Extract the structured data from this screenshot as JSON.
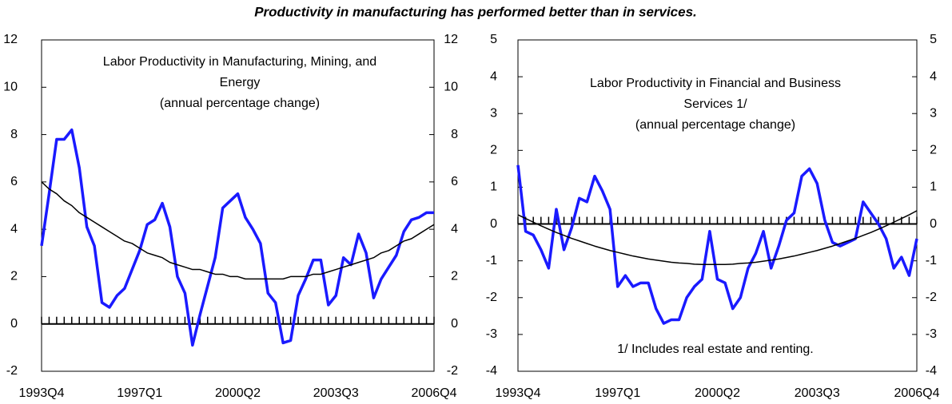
{
  "title": "Productivity in manufacturing has performed better than in services.",
  "chart_data": [
    {
      "type": "line",
      "title_lines": [
        "Labor Productivity in Manufacturing, Mining,  and",
        "Energy",
        "(annual percentage change)"
      ],
      "categories": [
        "1993Q4",
        null,
        null,
        null,
        null,
        null,
        null,
        null,
        null,
        null,
        null,
        null,
        null,
        "1997Q1",
        null,
        null,
        null,
        null,
        null,
        null,
        null,
        null,
        null,
        null,
        null,
        null,
        "2000Q2",
        null,
        null,
        null,
        null,
        null,
        null,
        null,
        null,
        null,
        null,
        null,
        null,
        "2003Q3",
        null,
        null,
        null,
        null,
        null,
        null,
        null,
        null,
        null,
        null,
        null,
        null,
        "2006Q4"
      ],
      "series": [
        {
          "color": "#1a1aff",
          "values": [
            3.3,
            5.5,
            7.8,
            7.8,
            8.2,
            6.6,
            4.1,
            3.3,
            0.9,
            0.7,
            1.2,
            1.5,
            2.3,
            3.1,
            4.2,
            4.4,
            5.1,
            4.1,
            2.0,
            1.3,
            -0.9,
            0.4,
            1.6,
            2.8,
            4.9,
            5.2,
            5.5,
            4.5,
            4.0,
            3.4,
            1.3,
            0.9,
            -0.8,
            -0.7,
            1.2,
            1.9,
            2.7,
            2.7,
            0.8,
            1.2,
            2.8,
            2.5,
            3.8,
            3.0,
            1.1,
            1.9,
            2.4,
            2.9,
            3.9,
            4.4,
            4.5,
            4.7,
            4.7
          ]
        },
        {
          "color": "#000000",
          "values": [
            6.0,
            5.7,
            5.5,
            5.2,
            5.0,
            4.7,
            4.5,
            4.3,
            4.1,
            3.9,
            3.7,
            3.5,
            3.4,
            3.2,
            3.0,
            2.9,
            2.8,
            2.6,
            2.5,
            2.4,
            2.3,
            2.3,
            2.2,
            2.1,
            2.1,
            2.0,
            2.0,
            1.9,
            1.9,
            1.9,
            1.9,
            1.9,
            1.9,
            2.0,
            2.0,
            2.0,
            2.1,
            2.1,
            2.2,
            2.3,
            2.4,
            2.5,
            2.6,
            2.7,
            2.8,
            3.0,
            3.1,
            3.3,
            3.5,
            3.6,
            3.8,
            4.0,
            4.2
          ]
        }
      ],
      "ylim": [
        -2,
        12
      ],
      "yticks": [
        -2,
        0,
        2,
        4,
        6,
        8,
        10,
        12
      ]
    },
    {
      "type": "line",
      "title_lines": [
        "Labor Productivity in Financial and Business",
        "Services 1/",
        "(annual percentage change)"
      ],
      "annotation": "1/ Includes real estate and renting.",
      "categories": [
        "1993Q4",
        null,
        null,
        null,
        null,
        null,
        null,
        null,
        null,
        null,
        null,
        null,
        null,
        "1997Q1",
        null,
        null,
        null,
        null,
        null,
        null,
        null,
        null,
        null,
        null,
        null,
        null,
        "2000Q2",
        null,
        null,
        null,
        null,
        null,
        null,
        null,
        null,
        null,
        null,
        null,
        null,
        "2003Q3",
        null,
        null,
        null,
        null,
        null,
        null,
        null,
        null,
        null,
        null,
        null,
        null,
        "2006Q4"
      ],
      "series": [
        {
          "color": "#1a1aff",
          "values": [
            1.6,
            -0.2,
            -0.3,
            -0.7,
            -1.2,
            0.4,
            -0.7,
            -0.1,
            0.7,
            0.6,
            1.3,
            0.9,
            0.4,
            -1.7,
            -1.4,
            -1.7,
            -1.6,
            -1.6,
            -2.3,
            -2.7,
            -2.6,
            -2.6,
            -2.0,
            -1.7,
            -1.5,
            -0.2,
            -1.5,
            -1.6,
            -2.3,
            -2.0,
            -1.2,
            -0.8,
            -0.2,
            -1.2,
            -0.6,
            0.1,
            0.3,
            1.3,
            1.5,
            1.1,
            0.1,
            -0.5,
            -0.6,
            -0.5,
            -0.4,
            0.6,
            0.3,
            0.0,
            -0.4,
            -1.2,
            -0.9,
            -1.4,
            -0.4
          ]
        },
        {
          "color": "#000000",
          "values": [
            0.25,
            0.15,
            0.05,
            -0.05,
            -0.14,
            -0.23,
            -0.31,
            -0.39,
            -0.46,
            -0.53,
            -0.6,
            -0.66,
            -0.72,
            -0.77,
            -0.82,
            -0.87,
            -0.91,
            -0.95,
            -0.98,
            -1.01,
            -1.04,
            -1.06,
            -1.07,
            -1.09,
            -1.1,
            -1.1,
            -1.1,
            -1.1,
            -1.09,
            -1.07,
            -1.06,
            -1.04,
            -1.01,
            -0.98,
            -0.95,
            -0.91,
            -0.87,
            -0.82,
            -0.77,
            -0.72,
            -0.66,
            -0.6,
            -0.53,
            -0.46,
            -0.39,
            -0.31,
            -0.23,
            -0.14,
            -0.05,
            0.05,
            0.15,
            0.25,
            0.36
          ]
        }
      ],
      "ylim": [
        -4,
        5
      ],
      "yticks": [
        -4,
        -3,
        -2,
        -1,
        0,
        1,
        2,
        3,
        4,
        5
      ]
    }
  ]
}
